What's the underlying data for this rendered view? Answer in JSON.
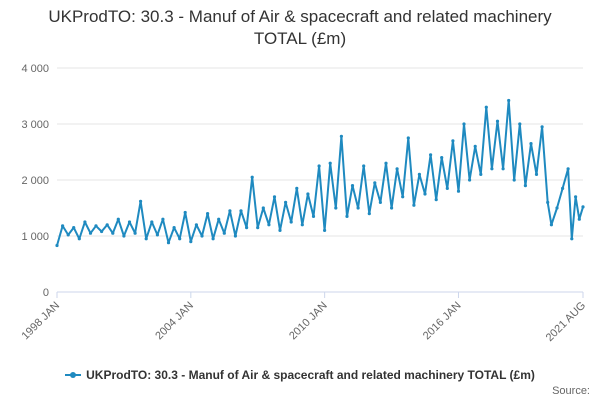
{
  "chart_data": {
    "type": "line",
    "title": "UKProdTO: 30.3 - Manuf of Air & spacecraft and related machinery TOTAL (£m)",
    "xlabel": "",
    "ylabel": "",
    "ylim": [
      0,
      4000
    ],
    "yticks": [
      0,
      1000,
      2000,
      3000,
      4000
    ],
    "ytick_labels": [
      "0",
      "1 000",
      "2 000",
      "3 000",
      "4 000"
    ],
    "xticks": [
      {
        "date": "1998-01",
        "label": "1998 JAN"
      },
      {
        "date": "2004-01",
        "label": "2004 JAN"
      },
      {
        "date": "2010-01",
        "label": "2010 JAN"
      },
      {
        "date": "2016-01",
        "label": "2016 JAN"
      },
      {
        "date": "2021-08",
        "label": "2021 AUG"
      }
    ],
    "grid": true,
    "legend": "bottom",
    "series_color": "#1f8ac0",
    "series": [
      {
        "name": "UKProdTO: 30.3 - Manuf of Air & spacecraft and related machinery TOTAL (£m)",
        "points": [
          [
            "1998-01",
            830
          ],
          [
            "1998-04",
            1180
          ],
          [
            "1998-07",
            1020
          ],
          [
            "1998-10",
            1150
          ],
          [
            "1999-01",
            950
          ],
          [
            "1999-04",
            1250
          ],
          [
            "1999-07",
            1050
          ],
          [
            "1999-10",
            1180
          ],
          [
            "2000-01",
            1080
          ],
          [
            "2000-04",
            1200
          ],
          [
            "2000-07",
            1050
          ],
          [
            "2000-10",
            1300
          ],
          [
            "2001-01",
            1000
          ],
          [
            "2001-04",
            1250
          ],
          [
            "2001-07",
            1050
          ],
          [
            "2001-10",
            1620
          ],
          [
            "2002-01",
            950
          ],
          [
            "2002-04",
            1250
          ],
          [
            "2002-07",
            1020
          ],
          [
            "2002-10",
            1300
          ],
          [
            "2003-01",
            880
          ],
          [
            "2003-04",
            1150
          ],
          [
            "2003-07",
            950
          ],
          [
            "2003-10",
            1420
          ],
          [
            "2004-01",
            900
          ],
          [
            "2004-04",
            1200
          ],
          [
            "2004-07",
            1000
          ],
          [
            "2004-10",
            1400
          ],
          [
            "2005-01",
            950
          ],
          [
            "2005-04",
            1300
          ],
          [
            "2005-07",
            1050
          ],
          [
            "2005-10",
            1450
          ],
          [
            "2006-01",
            1000
          ],
          [
            "2006-04",
            1450
          ],
          [
            "2006-07",
            1150
          ],
          [
            "2006-10",
            2050
          ],
          [
            "2007-01",
            1150
          ],
          [
            "2007-04",
            1500
          ],
          [
            "2007-07",
            1200
          ],
          [
            "2007-10",
            1700
          ],
          [
            "2008-01",
            1100
          ],
          [
            "2008-04",
            1600
          ],
          [
            "2008-07",
            1250
          ],
          [
            "2008-10",
            1850
          ],
          [
            "2009-01",
            1200
          ],
          [
            "2009-04",
            1750
          ],
          [
            "2009-07",
            1350
          ],
          [
            "2009-10",
            2250
          ],
          [
            "2010-01",
            1100
          ],
          [
            "2010-04",
            2300
          ],
          [
            "2010-07",
            1500
          ],
          [
            "2010-10",
            2780
          ],
          [
            "2011-01",
            1350
          ],
          [
            "2011-04",
            1900
          ],
          [
            "2011-07",
            1500
          ],
          [
            "2011-10",
            2250
          ],
          [
            "2012-01",
            1400
          ],
          [
            "2012-04",
            1950
          ],
          [
            "2012-07",
            1600
          ],
          [
            "2012-10",
            2300
          ],
          [
            "2013-01",
            1500
          ],
          [
            "2013-04",
            2200
          ],
          [
            "2013-07",
            1700
          ],
          [
            "2013-10",
            2750
          ],
          [
            "2014-01",
            1550
          ],
          [
            "2014-04",
            2100
          ],
          [
            "2014-07",
            1750
          ],
          [
            "2014-10",
            2450
          ],
          [
            "2015-01",
            1650
          ],
          [
            "2015-04",
            2400
          ],
          [
            "2015-07",
            1850
          ],
          [
            "2015-10",
            2700
          ],
          [
            "2016-01",
            1800
          ],
          [
            "2016-04",
            3000
          ],
          [
            "2016-07",
            2000
          ],
          [
            "2016-10",
            2600
          ],
          [
            "2017-01",
            2100
          ],
          [
            "2017-04",
            3300
          ],
          [
            "2017-07",
            2200
          ],
          [
            "2017-10",
            3050
          ],
          [
            "2018-01",
            2200
          ],
          [
            "2018-04",
            3420
          ],
          [
            "2018-07",
            2000
          ],
          [
            "2018-10",
            3000
          ],
          [
            "2019-01",
            1900
          ],
          [
            "2019-04",
            2650
          ],
          [
            "2019-07",
            2100
          ],
          [
            "2019-10",
            2950
          ],
          [
            "2020-01",
            1600
          ],
          [
            "2020-03",
            1200
          ],
          [
            "2020-06",
            1500
          ],
          [
            "2020-09",
            1850
          ],
          [
            "2020-12",
            2200
          ],
          [
            "2021-02",
            950
          ],
          [
            "2021-04",
            1700
          ],
          [
            "2021-06",
            1300
          ],
          [
            "2021-08",
            1520
          ]
        ]
      }
    ],
    "source_label": "Source:"
  }
}
